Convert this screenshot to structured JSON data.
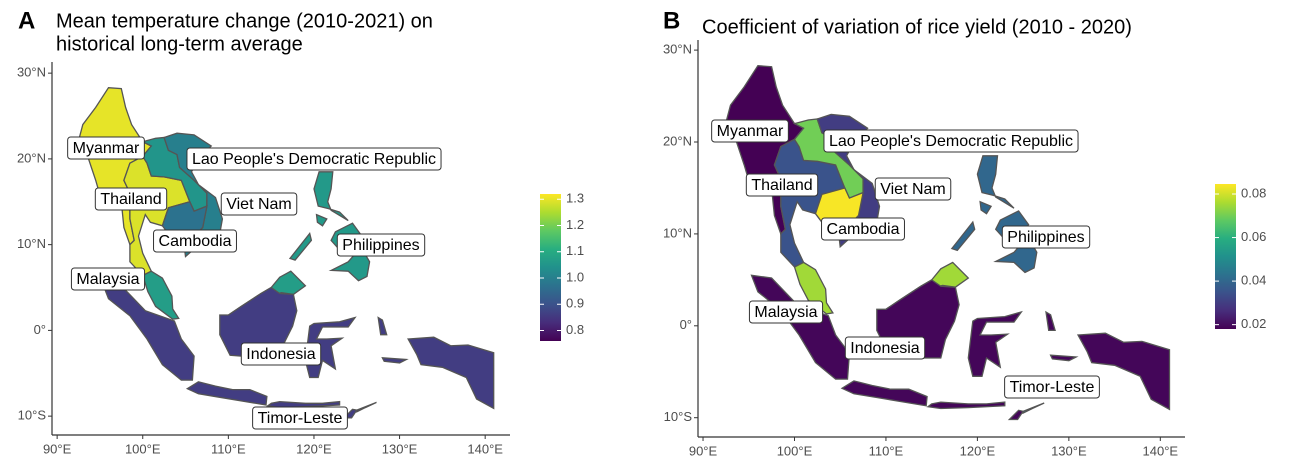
{
  "panels": [
    {
      "letter": "A",
      "title": [
        "Mean temperature change (2010-2021) on",
        "historical long-term average"
      ],
      "xlim": [
        89.4,
        142.9
      ],
      "ylim": [
        -12.2,
        31.3
      ],
      "xticks": [
        {
          "value": 90,
          "label": "90°E"
        },
        {
          "value": 100,
          "label": "100°E"
        },
        {
          "value": 110,
          "label": "110°E"
        },
        {
          "value": 120,
          "label": "120°E"
        },
        {
          "value": 130,
          "label": "130°E"
        },
        {
          "value": 140,
          "label": "140°E"
        }
      ],
      "yticks": [
        {
          "value": 30,
          "label": "30°N"
        },
        {
          "value": 20,
          "label": "20°N"
        },
        {
          "value": 10,
          "label": "10°N"
        },
        {
          "value": 0,
          "label": "0°"
        },
        {
          "value": -10,
          "label": "10°S"
        }
      ],
      "colorbar": {
        "lim": [
          0.76,
          1.32
        ],
        "ticks": [
          0.8,
          0.9,
          {
            "value": 1,
            "label": "1.0"
          },
          1.1,
          1.2,
          1.3
        ]
      },
      "countries": [
        {
          "name": "Myanmar",
          "value": 1.3
        },
        {
          "name": "Thailand",
          "value": 1.29
        },
        {
          "name": "Lao People's Democratic Republic",
          "value": 1.05
        },
        {
          "name": "Viet Nam",
          "value": 1.0
        },
        {
          "name": "Cambodia",
          "value": 0.97
        },
        {
          "name": "Malaysia",
          "value": 1.07
        },
        {
          "name": "Philippines",
          "value": 1.06
        },
        {
          "name": "Indonesia",
          "value": 0.86
        },
        {
          "name": "Timor-Leste",
          "value": 0.79
        }
      ]
    },
    {
      "letter": "B",
      "title": [
        "Coefficient of variation of rice yield (2010 - 2020)"
      ],
      "xlim": [
        89.45,
        142.7
      ],
      "ylim": [
        -12.1,
        31.1
      ],
      "xticks": [
        {
          "value": 90,
          "label": "90°E"
        },
        {
          "value": 100,
          "label": "100°E"
        },
        {
          "value": 110,
          "label": "110°E"
        },
        {
          "value": 120,
          "label": "120°E"
        },
        {
          "value": 130,
          "label": "130°E"
        },
        {
          "value": 140,
          "label": "140°E"
        }
      ],
      "yticks": [
        {
          "value": 30,
          "label": "30°N"
        },
        {
          "value": 20,
          "label": "20°N"
        },
        {
          "value": 10,
          "label": "10°N"
        },
        {
          "value": 0,
          "label": "0°"
        },
        {
          "value": -10,
          "label": "10°S"
        }
      ],
      "colorbar": {
        "lim": [
          0.018,
          0.0846
        ],
        "ticks": [
          0.02,
          0.04,
          0.06,
          0.08
        ]
      },
      "countries": [
        {
          "name": "Myanmar",
          "value": 0.018
        },
        {
          "name": "Thailand",
          "value": 0.035
        },
        {
          "name": "Lao People's Democratic Republic",
          "value": 0.07
        },
        {
          "name": "Viet Nam",
          "value": 0.03
        },
        {
          "name": "Cambodia",
          "value": 0.084
        },
        {
          "name": "Malaysia",
          "value": 0.075
        },
        {
          "name": "Philippines",
          "value": 0.04
        },
        {
          "name": "Indonesia",
          "value": 0.019
        },
        {
          "name": "Timor-Leste",
          "value": 0.05
        }
      ]
    }
  ]
}
